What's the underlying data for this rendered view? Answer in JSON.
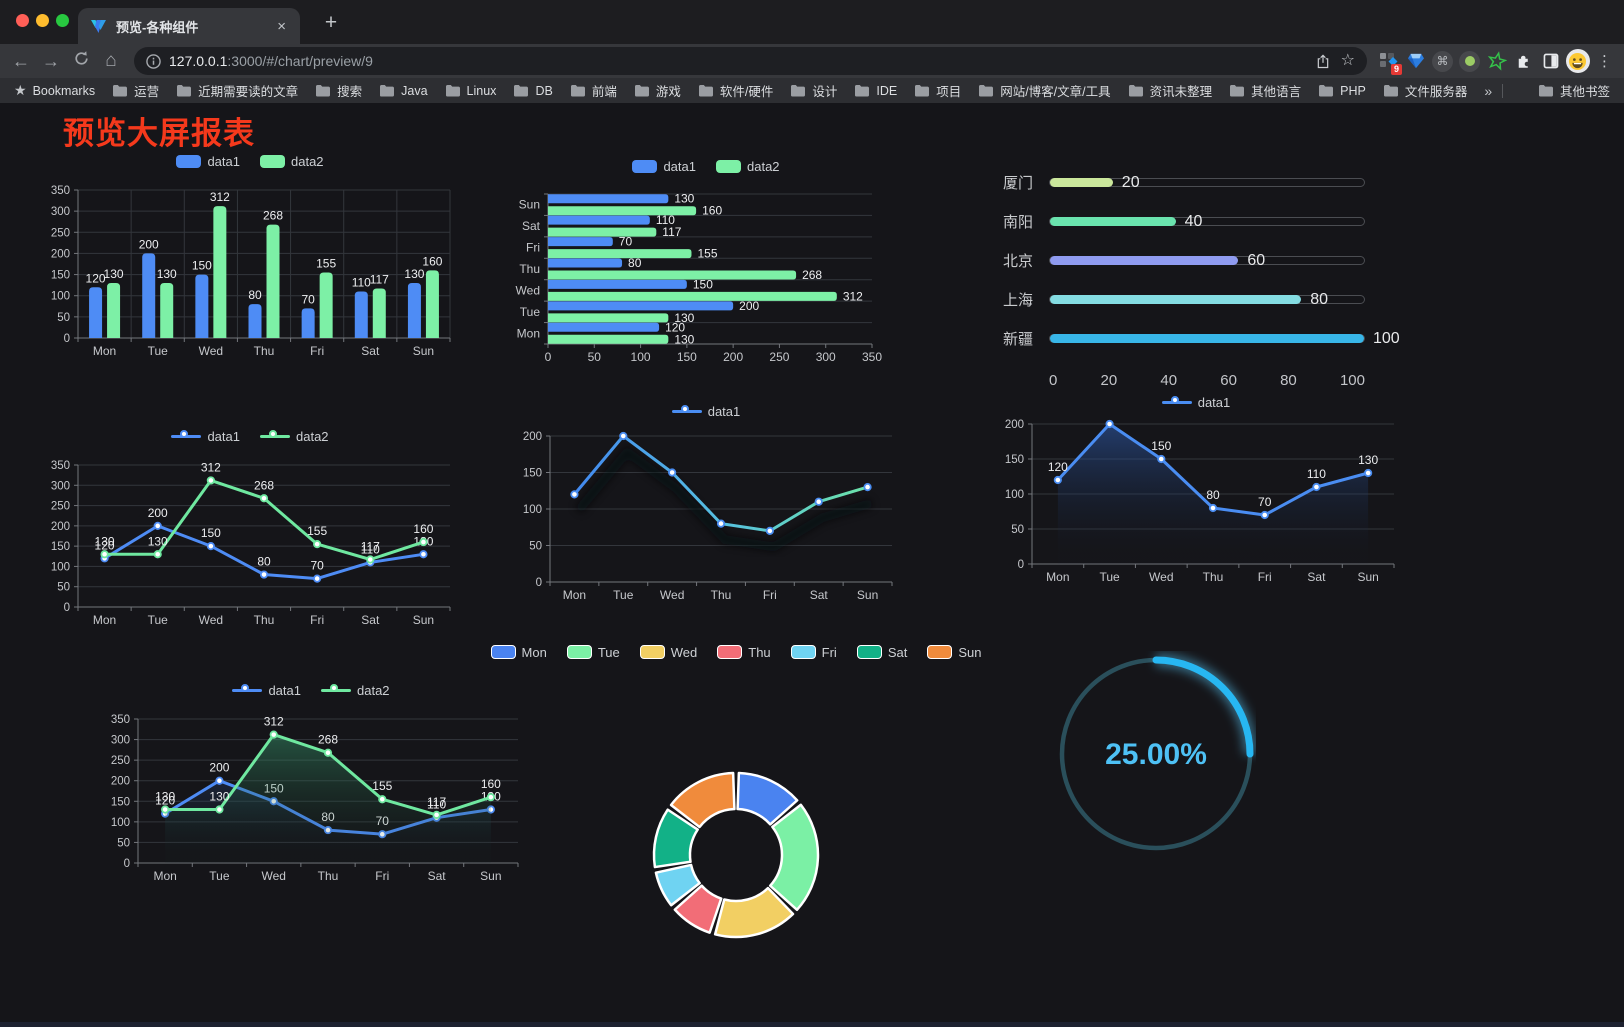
{
  "browser": {
    "tab_title": "预览-各种组件",
    "url_host": "127.0.0.1",
    "url_rest": ":3000/#/chart/preview/9",
    "extension_badge": "9",
    "bookmarks_label": "Bookmarks",
    "bookmarks": [
      "运营",
      "近期需要读的文章",
      "搜索",
      "Java",
      "Linux",
      "DB",
      "前端",
      "游戏",
      "软件/硬件",
      "设计",
      "IDE",
      "项目",
      "网站/博客/文章/工具",
      "资讯未整理",
      "其他语言",
      "PHP",
      "文件服务器"
    ],
    "other_bookmarks": "其他书签"
  },
  "icons": {
    "back": "←",
    "forward": "→",
    "home": "⌂",
    "close": "×",
    "new_tab": "+",
    "star_outline": "☆",
    "bookmarks_star": "★",
    "overflow": "»",
    "menu_dots": "⋮",
    "cmd": "⌘"
  },
  "page": {
    "title": "预览大屏报表",
    "title_color": "#f5391c"
  },
  "chart_data": [
    {
      "id": "bar-grouped",
      "type": "bar",
      "categories": [
        "Mon",
        "Tue",
        "Wed",
        "Thu",
        "Fri",
        "Sat",
        "Sun"
      ],
      "series": [
        {
          "name": "data1",
          "color": "#4e8cf5",
          "values": [
            120,
            200,
            150,
            80,
            70,
            110,
            130
          ]
        },
        {
          "name": "data2",
          "color": "#7df0a6",
          "values": [
            130,
            130,
            312,
            268,
            155,
            117,
            160
          ]
        }
      ],
      "ylim": [
        0,
        350
      ],
      "ystep": 50,
      "grid": "both",
      "labels": true,
      "legend_position": "top"
    },
    {
      "id": "bar-horizontal",
      "type": "bar-horizontal",
      "categories": [
        "Mon",
        "Tue",
        "Wed",
        "Thu",
        "Fri",
        "Sat",
        "Sun"
      ],
      "display_top_to_bottom": [
        "Sun",
        "Sat",
        "Fri",
        "Thu",
        "Wed",
        "Tue",
        "Mon"
      ],
      "series": [
        {
          "name": "data1",
          "color": "#4e8cf5",
          "values": [
            120,
            200,
            150,
            80,
            70,
            110,
            130
          ]
        },
        {
          "name": "data2",
          "color": "#7df0a6",
          "values": [
            130,
            130,
            312,
            268,
            155,
            117,
            160
          ]
        }
      ],
      "xlim": [
        0,
        350
      ],
      "xstep": 50,
      "labels": true,
      "legend_position": "top"
    },
    {
      "id": "progress-bars",
      "type": "bar-horizontal-progress",
      "items": [
        {
          "label": "厦门",
          "value": 20,
          "color": "#cbe79c"
        },
        {
          "label": "南阳",
          "value": 40,
          "color": "#6ae3ae"
        },
        {
          "label": "北京",
          "value": 60,
          "color": "#8f9bf0"
        },
        {
          "label": "上海",
          "value": 80,
          "color": "#84dce2"
        },
        {
          "label": "新疆",
          "value": 100,
          "color": "#38b6e8"
        }
      ],
      "xlim": [
        0,
        100
      ],
      "ticks": [
        0,
        20,
        40,
        60,
        80,
        100
      ]
    },
    {
      "id": "line-two-series",
      "type": "line",
      "categories": [
        "Mon",
        "Tue",
        "Wed",
        "Thu",
        "Fri",
        "Sat",
        "Sun"
      ],
      "series": [
        {
          "name": "data1",
          "color": "#4e8cf5",
          "values": [
            120,
            200,
            150,
            80,
            70,
            110,
            130
          ]
        },
        {
          "name": "data2",
          "color": "#6fe8a0",
          "values": [
            130,
            130,
            312,
            268,
            155,
            117,
            160
          ]
        }
      ],
      "ylim": [
        0,
        350
      ],
      "ystep": 50,
      "labels": true,
      "legend_position": "top"
    },
    {
      "id": "line-gradient",
      "type": "line",
      "categories": [
        "Mon",
        "Tue",
        "Wed",
        "Thu",
        "Fri",
        "Sat",
        "Sun"
      ],
      "series": [
        {
          "name": "data1",
          "color": "#4a8df2",
          "gradient": [
            "#3f7ff2",
            "#56c0e0",
            "#6fe8a0"
          ],
          "values": [
            120,
            200,
            150,
            80,
            70,
            110,
            130
          ]
        }
      ],
      "ylim": [
        0,
        200
      ],
      "ystep": 50,
      "labels": false,
      "shadow": true,
      "legend_position": "top"
    },
    {
      "id": "area-single",
      "type": "area",
      "categories": [
        "Mon",
        "Tue",
        "Wed",
        "Thu",
        "Fri",
        "Sat",
        "Sun"
      ],
      "series": [
        {
          "name": "data1",
          "color": "#4a8df2",
          "fill_from": "rgba(47,95,180,0.55)",
          "fill_to": "rgba(20,30,50,0.04)",
          "values": [
            120,
            200,
            150,
            80,
            70,
            110,
            130
          ]
        }
      ],
      "ylim": [
        0,
        200
      ],
      "ystep": 50,
      "labels": true,
      "legend_position": "top"
    },
    {
      "id": "area-two-series",
      "type": "area",
      "categories": [
        "Mon",
        "Tue",
        "Wed",
        "Thu",
        "Fri",
        "Sat",
        "Sun"
      ],
      "series": [
        {
          "name": "data1",
          "color": "#4e8cf5",
          "fill_from": "rgba(62,120,220,0.45)",
          "fill_to": "rgba(20,30,50,0.04)",
          "values": [
            120,
            200,
            150,
            80,
            70,
            110,
            130
          ]
        },
        {
          "name": "data2",
          "color": "#6fe8a0",
          "fill_from": "rgba(62,176,126,0.5)",
          "fill_to": "rgba(20,50,35,0.05)",
          "values": [
            130,
            130,
            312,
            268,
            155,
            117,
            160
          ]
        }
      ],
      "ylim": [
        0,
        350
      ],
      "ystep": 50,
      "labels": true,
      "legend_position": "top"
    },
    {
      "id": "donut",
      "type": "pie",
      "categories": [
        "Mon",
        "Tue",
        "Wed",
        "Thu",
        "Fri",
        "Sat",
        "Sun"
      ],
      "values": [
        120,
        200,
        150,
        80,
        70,
        110,
        130
      ],
      "colors": [
        "#4a83f0",
        "#7bf0a5",
        "#f2cf63",
        "#f26d77",
        "#6fd3f2",
        "#12b187",
        "#f08b3c"
      ],
      "border_color": "#ffffff",
      "legend_position": "top"
    },
    {
      "id": "gauge",
      "type": "gauge",
      "value": 25,
      "max": 100,
      "label": "25.00%",
      "color": "#27b7f2",
      "track_color": "#2a4f5b",
      "text_color": "#4ec1f5"
    }
  ]
}
